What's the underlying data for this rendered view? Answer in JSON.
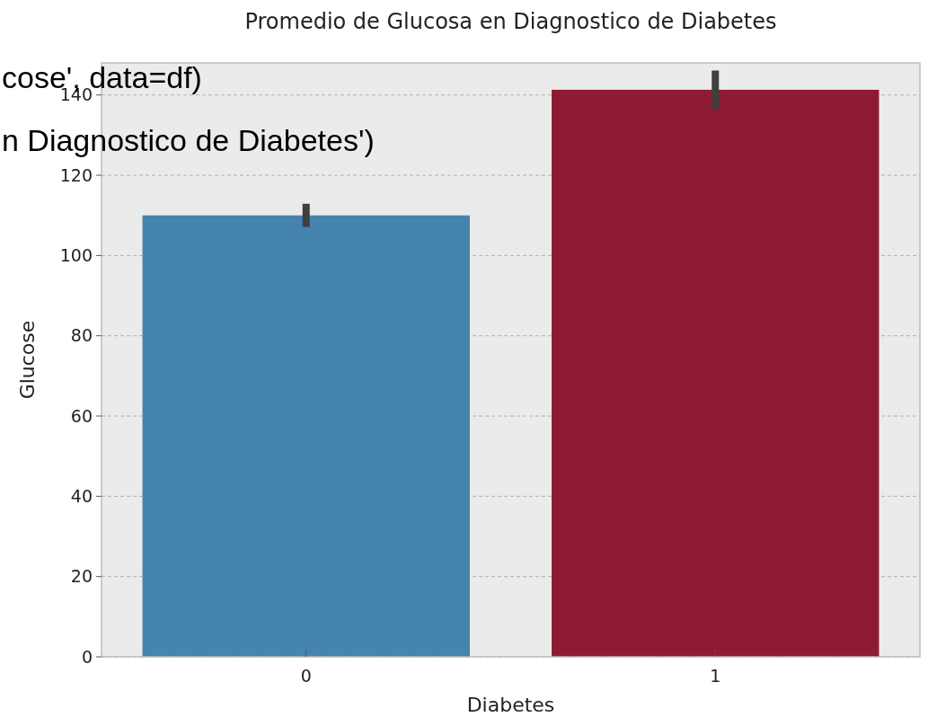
{
  "chart_data": {
    "type": "bar",
    "title": "Promedio de Glucosa en Diagnostico de Diabetes",
    "xlabel": "Diabetes",
    "ylabel": "Glucose",
    "categories": [
      "0",
      "1"
    ],
    "values": [
      110.0,
      141.3
    ],
    "colors": [
      "#4584ad",
      "#8e1a33"
    ],
    "errors": [
      [
        107.1,
        112.9
      ],
      [
        136.6,
        146.1
      ]
    ],
    "ylim": [
      0,
      148
    ],
    "yticks": [
      0,
      20,
      40,
      60,
      80,
      100,
      120,
      140
    ],
    "grid": "y",
    "annotations": [
      "cose', data=df)",
      "n Diagnostico de Diabetes')"
    ]
  }
}
